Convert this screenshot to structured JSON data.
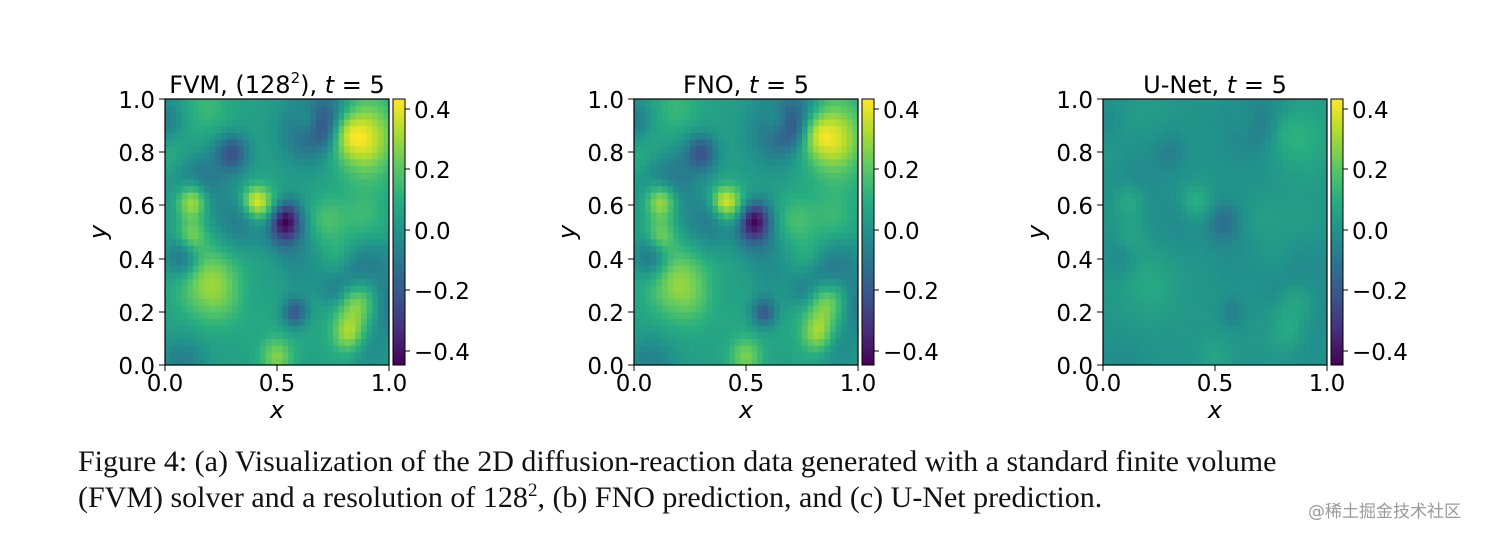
{
  "chart_data": [
    {
      "type": "heatmap",
      "title_main": "FVM, (128",
      "title_sup": "2",
      "title_tail": "), ",
      "title_var": "t",
      "title_eq": " = 5",
      "xlabel": "x",
      "ylabel": "y",
      "xlim": [
        0.0,
        1.0
      ],
      "ylim": [
        0.0,
        1.0
      ],
      "x_ticks": [
        "0.0",
        "0.5",
        "1.0"
      ],
      "y_ticks": [
        "0.0",
        "0.2",
        "0.4",
        "0.6",
        "0.8",
        "1.0"
      ],
      "colorbar_range": [
        -0.45,
        0.43
      ],
      "colorbar_ticks": [
        "0.4",
        "0.2",
        "0.0",
        "−0.2",
        "−0.4"
      ],
      "colormap": "viridis",
      "field_amplitude": 1.0
    },
    {
      "type": "heatmap",
      "title_main": "FNO, ",
      "title_sup": "",
      "title_tail": "",
      "title_var": "t",
      "title_eq": " = 5",
      "xlabel": "x",
      "ylabel": "y",
      "xlim": [
        0.0,
        1.0
      ],
      "ylim": [
        0.0,
        1.0
      ],
      "x_ticks": [
        "0.0",
        "0.5",
        "1.0"
      ],
      "y_ticks": [
        "0.0",
        "0.2",
        "0.4",
        "0.6",
        "0.8",
        "1.0"
      ],
      "colorbar_range": [
        -0.45,
        0.43
      ],
      "colorbar_ticks": [
        "0.4",
        "0.2",
        "0.0",
        "−0.2",
        "−0.4"
      ],
      "colormap": "viridis",
      "field_amplitude": 0.97
    },
    {
      "type": "heatmap",
      "title_main": "U-Net, ",
      "title_sup": "",
      "title_tail": "",
      "title_var": "t",
      "title_eq": " = 5",
      "xlabel": "x",
      "ylabel": "y",
      "xlim": [
        0.0,
        1.0
      ],
      "ylim": [
        0.0,
        1.0
      ],
      "x_ticks": [
        "0.0",
        "0.5",
        "1.0"
      ],
      "y_ticks": [
        "0.0",
        "0.2",
        "0.4",
        "0.6",
        "0.8",
        "1.0"
      ],
      "colorbar_range": [
        -0.45,
        0.43
      ],
      "colorbar_ticks": [
        "0.4",
        "0.2",
        "0.0",
        "−0.2",
        "−0.4"
      ],
      "colormap": "viridis",
      "field_amplitude": 0.28
    }
  ],
  "caption": {
    "line1": "Figure 4: (a) Visualization of the 2D diffusion-reaction data generated with a standard finite volume",
    "line2_a": "(FVM) solver and a resolution of 128",
    "line2_sup": "2",
    "line2_b": ", (b) FNO prediction, and (c) U-Net prediction."
  },
  "watermark": "@稀土掘金技术社区"
}
